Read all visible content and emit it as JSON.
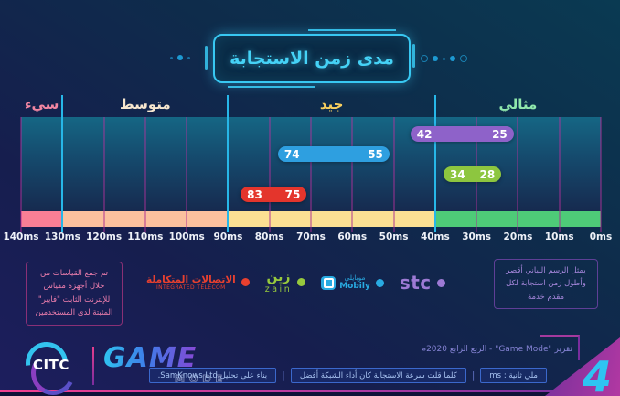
{
  "title": {
    "text": "مدى زمن الاستجابة"
  },
  "chart_data": {
    "type": "bar",
    "subtype": "horizontal_range_bars",
    "title": "مدى زمن الاستجابة",
    "axis": {
      "unit": "ms",
      "min": 0,
      "max": 140,
      "orientation": "values increase right-to-left (0ms at right, 140ms at left)",
      "tick_values": [
        140,
        130,
        120,
        110,
        100,
        90,
        80,
        70,
        60,
        50,
        40,
        30,
        20,
        10,
        0
      ],
      "ticks": [
        "140ms",
        "130ms",
        "120ms",
        "110ms",
        "100ms",
        "90ms",
        "80ms",
        "70ms",
        "60ms",
        "50ms",
        "40ms",
        "30ms",
        "20ms",
        "10ms",
        "0ms"
      ],
      "boundary_values": [
        130,
        90,
        40
      ],
      "gridline_color": "#ba309e",
      "boundary_color": "#27b7e8"
    },
    "zones": [
      {
        "label": "سيء",
        "from": 140,
        "to": 130,
        "band_color": "#fa7f95",
        "label_color": "#f286a2"
      },
      {
        "label": "متوسط",
        "from": 130,
        "to": 90,
        "band_color": "#fcc19e",
        "label_color": "#f7e7cf"
      },
      {
        "label": "جيد",
        "from": 90,
        "to": 40,
        "band_color": "#fbe093",
        "label_color": "#f8cf5e"
      },
      {
        "label": "مثالي",
        "from": 40,
        "to": 0,
        "band_color": "#4ecb78",
        "label_color": "#90e8ac"
      }
    ],
    "series": [
      {
        "id": "stc",
        "name": "stc",
        "max": 42,
        "min": 25,
        "color": "#8e62c9",
        "row": 0
      },
      {
        "id": "mobily",
        "name": "Mobily",
        "max": 74,
        "min": 55,
        "color": "#2e9fe0",
        "row": 1
      },
      {
        "id": "zain",
        "name": "Zain",
        "max": 34,
        "min": 28,
        "color": "#8dc63f",
        "row": 2
      },
      {
        "id": "integrated-telecom",
        "name": "Integrated Telecom",
        "max": 83,
        "min": 75,
        "color": "#e4352c",
        "row": 3
      }
    ]
  },
  "notes": {
    "measurement": "تم جمع القياسات من خلال أجهزة مقياس للإنترنت الثابت \"فايبر\" المثبتة لدى المستخدمين",
    "reading": "يمثل الرسم البياني أقصر وأطول زمن استجابة لكل مقدم خدمة"
  },
  "legend": {
    "items": [
      {
        "id": "integrated-telecom",
        "name_ar": "الاتصالات المتكاملة",
        "name_en": "INTEGRATED TELECOM",
        "color": "#e8402f"
      },
      {
        "id": "zain",
        "name_ar": "زين",
        "name_en": "zain",
        "color": "#97c93d"
      },
      {
        "id": "mobily",
        "name_ar": "موبايلي",
        "name_en": "Mobily",
        "color": "#29abe2"
      },
      {
        "id": "stc",
        "name_en": "stc",
        "color": "#9d7ad4"
      }
    ]
  },
  "footer": {
    "citc_logo": "CITC",
    "game": "GAME",
    "mode": "MODE",
    "report_line": "تقرير \"Game Mode\" - الربع الرابع 2020م",
    "badges": [
      {
        "text": "ملي ثانية : ms"
      },
      {
        "text": "كلما قلت سرعة الاستجابة كان أداء الشبكة أفضل"
      },
      {
        "text": "بناء على تحليل SamKnows Ltd."
      }
    ],
    "separator": "|",
    "page_number": "4"
  }
}
